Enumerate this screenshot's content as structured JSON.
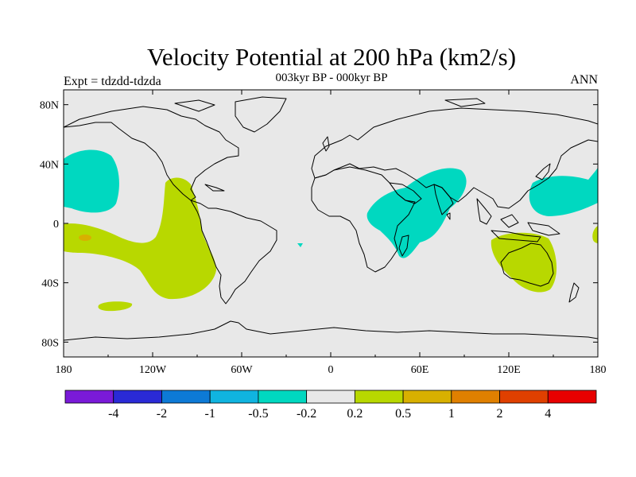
{
  "title": "Velocity Potential at 200 hPa (km2/s)",
  "subtitle": "003kyr BP - 000kyr BP",
  "left_label": "Expt = tdzdd-tdzda",
  "right_label": "ANN",
  "lat_ticks": [
    "80N",
    "40N",
    "0",
    "40S",
    "80S"
  ],
  "lon_ticks": [
    "180",
    "120W",
    "60W",
    "0",
    "60E",
    "120E",
    "180"
  ],
  "legend": {
    "colors": [
      "#7a1ad8",
      "#2a2ad6",
      "#0d7ad6",
      "#10b4e0",
      "#00d8c0",
      "#e8e8e8",
      "#b8d800",
      "#d8b000",
      "#e08000",
      "#e04000",
      "#e80000"
    ],
    "labels": [
      "-4",
      "-2",
      "-1",
      "-0.5",
      "-0.2",
      "0.2",
      "0.5",
      "1",
      "2",
      "4"
    ]
  },
  "colors": {
    "ocean_background": "#e8e8e8",
    "negative_contour_fill": "#00d8c0",
    "positive_contour_fill": "#b8d800",
    "max_spot_fill": "#d8b000",
    "coastline": "#000000"
  }
}
